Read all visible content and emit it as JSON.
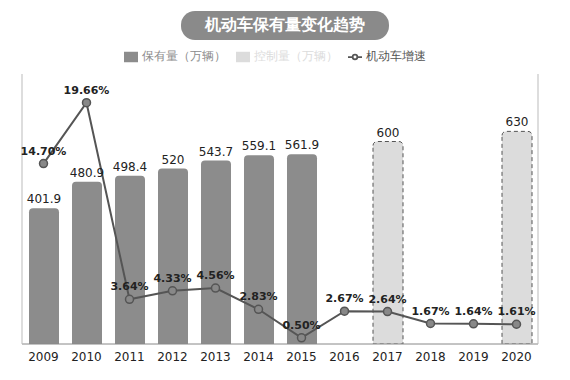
{
  "chart_data": {
    "type": "bar",
    "title": "机动车保有量变化趋势",
    "categories": [
      "2009",
      "2010",
      "2011",
      "2012",
      "2013",
      "2014",
      "2015",
      "2016",
      "2017",
      "2018",
      "2019",
      "2020"
    ],
    "ylim": [
      0,
      800
    ],
    "y2lim": [
      0,
      22
    ],
    "tick_labels": "x",
    "data_labels": true,
    "legend": "top",
    "grid": false,
    "series": [
      {
        "name": "保有量（万辆）",
        "type": "bar",
        "color": "#8c8c8c",
        "values": [
          401.9,
          480.9,
          498.4,
          520,
          543.7,
          559.1,
          561.9,
          null,
          null,
          null,
          null,
          null
        ]
      },
      {
        "name": "控制量（万辆）",
        "type": "bar",
        "color": "#dcdcdc",
        "line_style": "dashed",
        "values": [
          null,
          null,
          null,
          null,
          null,
          null,
          null,
          null,
          600,
          null,
          null,
          630
        ]
      },
      {
        "name": "机动车增速",
        "type": "line",
        "axis": "y2",
        "color": "#555555",
        "marker": "circle",
        "values": [
          14.7,
          19.66,
          3.64,
          4.33,
          4.56,
          2.83,
          0.5,
          2.67,
          2.64,
          1.67,
          1.64,
          1.61
        ],
        "value_labels": [
          "14.70%",
          "19.66%",
          "3.64%",
          "4.33%",
          "4.56%",
          "2.83%",
          "0.50%",
          "2.67%",
          "2.64%",
          "1.67%",
          "1.64%",
          "1.61%"
        ]
      }
    ]
  }
}
